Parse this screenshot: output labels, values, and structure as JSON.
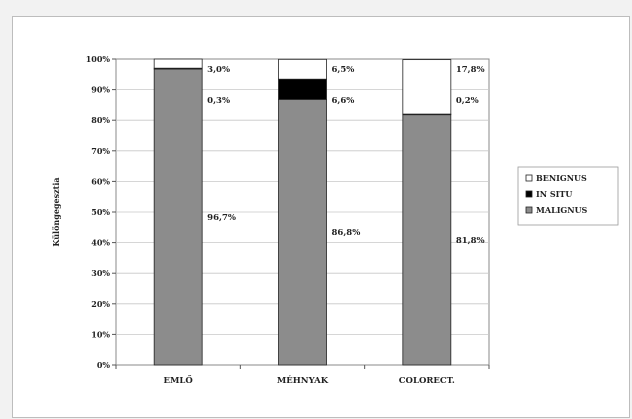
{
  "caption": "",
  "chart_data": {
    "type": "bar",
    "stacked": true,
    "percent_stacked": true,
    "categories": [
      "EMLŐ",
      "MÉHNYAK",
      "COLORECT."
    ],
    "ylabel": "Különgegesztia",
    "yticks": [
      "0%",
      "10%",
      "20%",
      "30%",
      "40%",
      "50%",
      "60%",
      "70%",
      "80%",
      "90%",
      "100%"
    ],
    "ylim": [
      0,
      100
    ],
    "grid": true,
    "legend_position": "right",
    "series": [
      {
        "name": "MALIGNUS",
        "color": "#8c8c8c",
        "values": [
          96.7,
          86.8,
          81.8
        ],
        "labels": [
          "96,7%",
          "86,8%",
          "81,8%"
        ]
      },
      {
        "name": "IN SITU",
        "color": "#000000",
        "values": [
          0.3,
          6.6,
          0.2
        ],
        "labels": [
          "0,3%",
          "6,6%",
          "0,2%"
        ]
      },
      {
        "name": "BENIGNUS",
        "color": "#ffffff",
        "values": [
          3.0,
          6.5,
          17.8
        ],
        "labels": [
          "3,0%",
          "6,5%",
          "17,8%"
        ]
      }
    ]
  }
}
